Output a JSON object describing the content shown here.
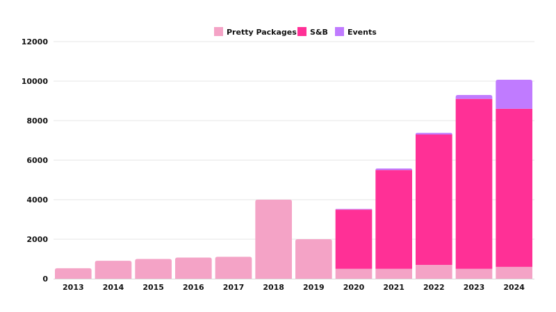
{
  "chart_data": {
    "type": "bar",
    "stacked": true,
    "title": "",
    "xlabel": "",
    "ylabel": "",
    "ylim": [
      0,
      12000
    ],
    "yticks": [
      0,
      2000,
      4000,
      6000,
      8000,
      10000,
      12000
    ],
    "ytick_labels": [
      "0",
      "2000",
      "4000",
      "6000",
      "8000",
      "10000",
      "12000"
    ],
    "grid": true,
    "legend_position": "top-center",
    "categories": [
      "2013",
      "2014",
      "2015",
      "2016",
      "2017",
      "2018",
      "2019",
      "2020",
      "2021",
      "2022",
      "2023",
      "2024"
    ],
    "series": [
      {
        "name": "Pretty Packages",
        "color": "#f4a3c6",
        "values": [
          530,
          910,
          1000,
          1070,
          1110,
          4000,
          2000,
          500,
          500,
          700,
          500,
          600
        ]
      },
      {
        "name": "S&B",
        "color": "#ff3096",
        "values": [
          0,
          0,
          0,
          0,
          0,
          0,
          0,
          3000,
          5000,
          6600,
          8600,
          8000
        ]
      },
      {
        "name": "Events",
        "color": "#c07bff",
        "values": [
          0,
          0,
          0,
          0,
          0,
          0,
          0,
          30,
          80,
          80,
          200,
          1470
        ]
      }
    ]
  }
}
